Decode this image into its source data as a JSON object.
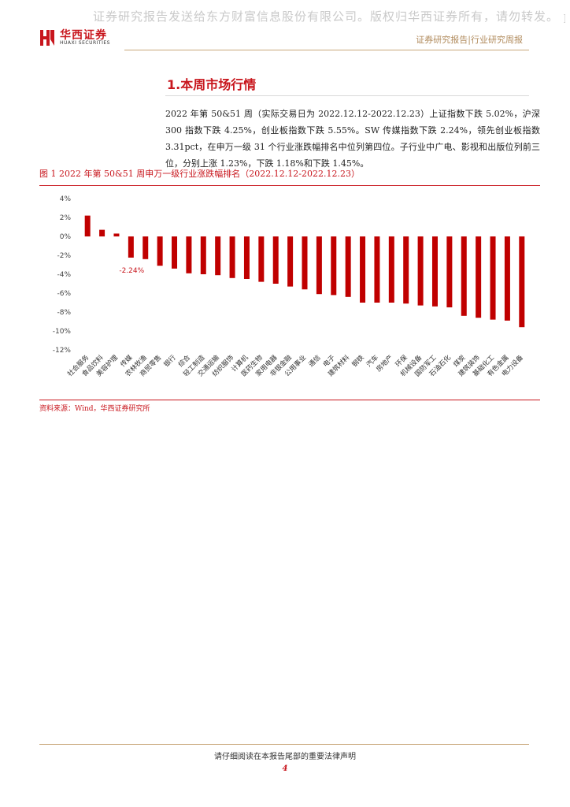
{
  "watermark": "证券研究报告发送给东方财富信息股份有限公司。版权归华西证券所有，请勿转发。 p",
  "header": {
    "logo_cn": "华西证券",
    "logo_en": "HUAXI SECURITIES",
    "right": "证券研究报告|行业研究周报"
  },
  "section": {
    "title": "1.本周市场行情",
    "paragraph": "2022 年第 50&51 周（实际交易日为 2022.12.12-2022.12.23）上证指数下跌 5.02%，沪深 300 指数下跌 4.25%，创业板指数下跌 5.55%。SW 传媒指数下跌 2.24%，领先创业板指数 3.31pct，在申万一级 31 个行业涨跌幅排名中位列第四位。子行业中广电、影视和出版位列前三位，分别上涨 1.23%，下跌 1.18%和下跌 1.45%。"
  },
  "figure": {
    "title": "图 1  2022 年第 50&51 周申万一级行业涨跌幅排名（2022.12.12-2022.12.23）",
    "source": "资料来源：Wind，华西证券研究所"
  },
  "chart_data": {
    "type": "bar",
    "categories": [
      "社会服务",
      "食品饮料",
      "美容护理",
      "传媒",
      "农林牧渔",
      "商贸零售",
      "银行",
      "综合",
      "轻工制造",
      "交通运输",
      "纺织服饰",
      "计算机",
      "医药生物",
      "家用电器",
      "非银金融",
      "公用事业",
      "通信",
      "电子",
      "建筑材料",
      "钢铁",
      "汽车",
      "房地产",
      "环保",
      "机械设备",
      "国防军工",
      "石油石化",
      "煤炭",
      "建筑装饰",
      "基础化工",
      "有色金属",
      "电力设备"
    ],
    "values": [
      2.2,
      0.7,
      0.3,
      -2.24,
      -2.4,
      -3.1,
      -3.4,
      -3.9,
      -4.0,
      -4.1,
      -4.4,
      -4.5,
      -4.8,
      -5.0,
      -5.3,
      -5.6,
      -6.1,
      -6.2,
      -6.4,
      -7.0,
      -7.0,
      -7.0,
      -7.1,
      -7.3,
      -7.4,
      -7.5,
      -8.4,
      -8.6,
      -8.8,
      -8.9,
      -9.6
    ],
    "highlight_label": "-2.24%",
    "ylim": [
      -12,
      4
    ],
    "yticks": [
      "4%",
      "2%",
      "0%",
      "-2%",
      "-4%",
      "-6%",
      "-8%",
      "-10%",
      "-12%"
    ],
    "bar_color": "#c00000",
    "label_color": "#c8161d"
  },
  "footer": {
    "statement": "请仔细阅读在本报告尾部的重要法律声明",
    "page": "4"
  }
}
